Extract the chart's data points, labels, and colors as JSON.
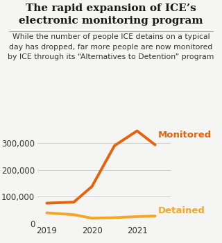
{
  "title_line1": "The rapid expansion of ICE’s",
  "title_line2": "electronic monitoring program",
  "subtitle": "While the number of people ICE detains on a typical\nday has dropped, far more people are now monitored\nby ICE through its “Alternatives to Detention” program",
  "monitored_x": [
    2019,
    2019.6,
    2020,
    2020.5,
    2021,
    2021.4
  ],
  "monitored_y": [
    76000,
    80000,
    138000,
    290000,
    345000,
    293000
  ],
  "detained_x": [
    2019,
    2019.6,
    2020,
    2020.5,
    2021,
    2021.4
  ],
  "detained_y": [
    40000,
    33000,
    20000,
    22000,
    26000,
    28000
  ],
  "monitored_color": "#E8620A",
  "detained_color": "#F5A623",
  "monitored_label": "Monitored",
  "detained_label": "Detained",
  "yticks": [
    0,
    100000,
    200000,
    300000
  ],
  "ytick_labels": [
    "0",
    "100,000",
    "200,000",
    "300,000"
  ],
  "xticks": [
    2019,
    2020,
    2021
  ],
  "xtick_labels": [
    "2019",
    "2020",
    "2021"
  ],
  "ylim": [
    0,
    380000
  ],
  "xlim": [
    2018.8,
    2021.75
  ],
  "bg_color": "#f5f5f3",
  "title_fontsize": 11.0,
  "subtitle_fontsize": 7.8,
  "label_fontsize": 9.5,
  "tick_fontsize": 8.5,
  "line_width": 2.8
}
